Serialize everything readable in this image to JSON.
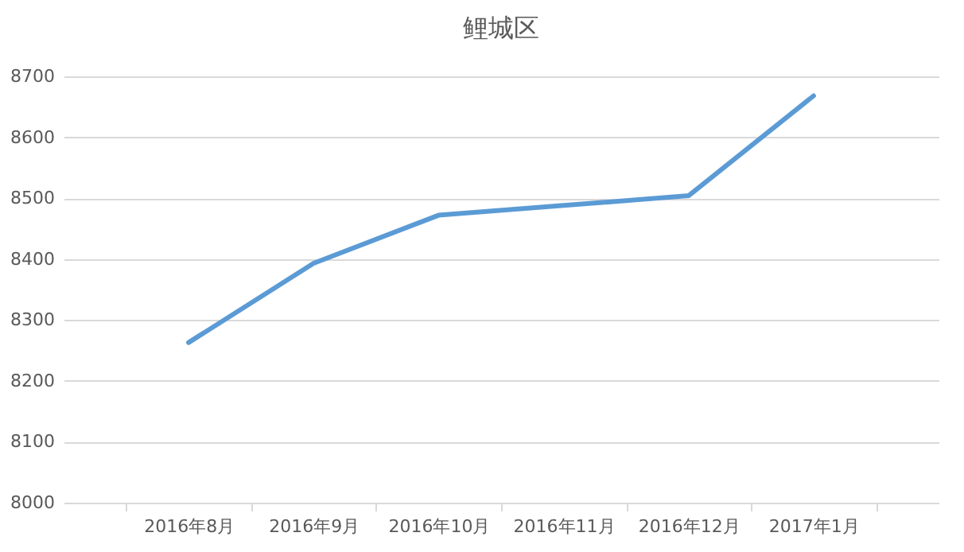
{
  "chart_data": {
    "type": "line",
    "title": "鲤城区",
    "categories": [
      "2016年8月",
      "2016年9月",
      "2016年10月",
      "2016年11月",
      "2016年12月",
      "2017年1月"
    ],
    "series": [
      {
        "color": "#5b9bd5",
        "values": [
          8263,
          8393,
          8472,
          8488,
          8504,
          8668
        ]
      }
    ],
    "ylim": [
      8000,
      8700
    ],
    "yticks": [
      8000,
      8100,
      8200,
      8300,
      8400,
      8500,
      8600,
      8700
    ],
    "grid": "y",
    "legend": false,
    "marker": "none",
    "line_style": "solid"
  }
}
